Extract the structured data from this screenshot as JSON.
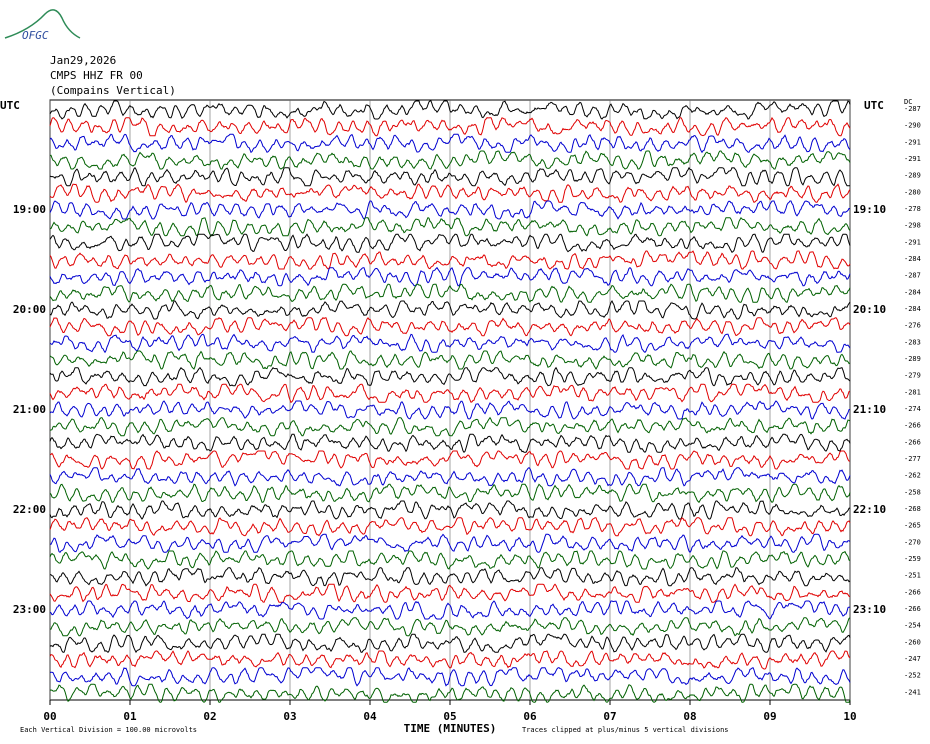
{
  "logo": "OFGC",
  "chart_data": {
    "type": "helicorder",
    "date": "Jan29,2026",
    "station": "CMPS HHZ FR 00",
    "site": "(Compains Vertical)",
    "x_label": "TIME (MINUTES)",
    "left_header": "UTC",
    "right_header": "UTC",
    "dc_header": "DC",
    "footnote_left": "Each Vertical Division = 100.00 microvolts",
    "footnote_right": "Traces clipped at plus/minus 5 vertical divisions",
    "xlim": [
      0,
      10
    ],
    "xticks": [
      {
        "value": 0,
        "label": "00"
      },
      {
        "value": 1,
        "label": "01"
      },
      {
        "value": 2,
        "label": "02"
      },
      {
        "value": 3,
        "label": "03"
      },
      {
        "value": 4,
        "label": "04"
      },
      {
        "value": 5,
        "label": "05"
      },
      {
        "value": 6,
        "label": "06"
      },
      {
        "value": 7,
        "label": "07"
      },
      {
        "value": 8,
        "label": "08"
      },
      {
        "value": 9,
        "label": "09"
      },
      {
        "value": 10,
        "label": "10"
      }
    ],
    "rows_left": [
      null,
      null,
      null,
      null,
      null,
      null,
      "19:00",
      null,
      null,
      null,
      null,
      null,
      "20:00",
      null,
      null,
      null,
      null,
      null,
      "21:00",
      null,
      null,
      null,
      null,
      null,
      "22:00",
      null,
      null,
      null,
      null,
      null,
      "23:00",
      null,
      null,
      null,
      null,
      null
    ],
    "rows_right": [
      null,
      null,
      null,
      null,
      null,
      null,
      "19:10",
      null,
      null,
      null,
      null,
      null,
      "20:10",
      null,
      null,
      null,
      null,
      null,
      "21:10",
      null,
      null,
      null,
      null,
      null,
      "22:10",
      null,
      null,
      null,
      null,
      null,
      "23:10",
      null,
      null,
      null,
      null,
      null
    ],
    "dc": [
      -287,
      -290,
      -291,
      -291,
      -289,
      -280,
      -278,
      -298,
      -291,
      -284,
      -287,
      -284,
      -284,
      -276,
      -283,
      -289,
      -279,
      -281,
      -274,
      -266,
      -266,
      -277,
      -262,
      -258,
      -268,
      -265,
      -270,
      -259,
      -251,
      -266,
      -266,
      -254,
      -260,
      -247,
      -252,
      -241
    ],
    "colors": [
      "#000000",
      "#e00000",
      "#0000d0",
      "#006000"
    ],
    "grid": true
  }
}
